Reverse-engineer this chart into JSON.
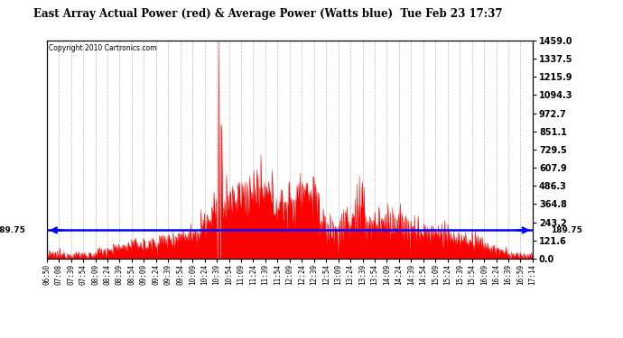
{
  "title": "East Array Actual Power (red) & Average Power (Watts blue)  Tue Feb 23 17:37",
  "copyright": "Copyright 2010 Cartronics.com",
  "average_power": 189.75,
  "ymax": 1459.0,
  "ymin": 0.0,
  "yticks_right": [
    0.0,
    121.6,
    243.2,
    364.8,
    486.3,
    607.9,
    729.5,
    851.1,
    972.7,
    1094.3,
    1215.9,
    1337.5,
    1459.0
  ],
  "ytick_labels_right": [
    "0.0",
    "121.6",
    "243.2",
    "364.8",
    "486.3",
    "607.9",
    "729.5",
    "851.1",
    "972.7",
    "1094.3",
    "1215.9",
    "1337.5",
    "1459.0"
  ],
  "xtick_labels": [
    "06:50",
    "07:08",
    "07:39",
    "07:54",
    "08:09",
    "08:24",
    "08:39",
    "08:54",
    "09:09",
    "09:24",
    "09:39",
    "09:54",
    "10:09",
    "10:24",
    "10:39",
    "10:54",
    "11:09",
    "11:24",
    "11:39",
    "11:54",
    "12:09",
    "12:24",
    "12:39",
    "12:54",
    "13:09",
    "13:24",
    "13:39",
    "13:54",
    "14:09",
    "14:24",
    "14:39",
    "14:54",
    "15:09",
    "15:24",
    "15:39",
    "15:54",
    "16:09",
    "16:24",
    "16:39",
    "16:59",
    "17:14"
  ],
  "line_color": "blue",
  "fill_color": "red",
  "background_color": "white",
  "grid_color": "#aaaaaa"
}
